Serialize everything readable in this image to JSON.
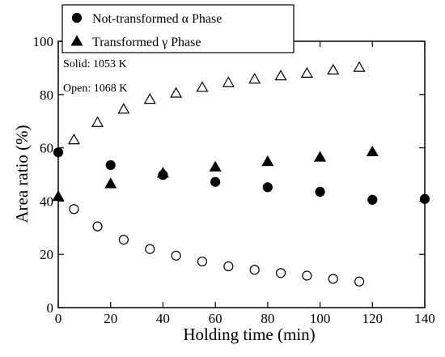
{
  "chart_data": {
    "type": "scatter",
    "title": "",
    "xlabel": "Holding time (min)",
    "ylabel": "Area ratio (%)",
    "xlim": [
      0,
      140
    ],
    "ylim": [
      0,
      100
    ],
    "x_ticks": [
      0,
      20,
      40,
      60,
      80,
      100,
      120,
      140
    ],
    "y_ticks": [
      0,
      20,
      40,
      60,
      80,
      100
    ],
    "x_tick_labels": [
      "0",
      "20",
      "40",
      "60",
      "80",
      "100",
      "120",
      "140"
    ],
    "y_tick_labels": [
      "0",
      "20",
      "40",
      "60",
      "80",
      "100"
    ],
    "grid": false,
    "legend": {
      "placement": "top-left",
      "entries": [
        {
          "label": "Not-transformed α Phase",
          "marker": "circle-filled"
        },
        {
          "label": "Transformed γ Phase",
          "marker": "triangle-filled"
        }
      ]
    },
    "annotations": [
      "Solid: 1053 K",
      "Open: 1068 K"
    ],
    "series": [
      {
        "legend_index": 0,
        "marker": "circle-filled",
        "x": [
          0,
          20,
          40,
          60,
          80,
          100,
          120,
          140
        ],
        "y": [
          58.3,
          53.5,
          49.8,
          47.2,
          45.2,
          43.5,
          40.5,
          40.8
        ]
      },
      {
        "legend_index": 1,
        "marker": "triangle-filled",
        "x": [
          0,
          20,
          40,
          60,
          80,
          100,
          120
        ],
        "y": [
          41.7,
          46.5,
          50.5,
          52.8,
          54.8,
          56.5,
          58.5
        ]
      },
      {
        "legend_index": null,
        "marker": "circle-open",
        "x": [
          6,
          15,
          25,
          35,
          45,
          55,
          65,
          75,
          85,
          95,
          105,
          115
        ],
        "y": [
          37,
          30.5,
          25.5,
          22,
          19.5,
          17.3,
          15.5,
          14.2,
          13,
          12,
          10.8,
          9.8
        ]
      },
      {
        "legend_index": null,
        "marker": "triangle-open",
        "x": [
          6,
          15,
          25,
          35,
          45,
          55,
          65,
          75,
          85,
          95,
          105,
          115
        ],
        "y": [
          63,
          69.5,
          74.5,
          78.2,
          80.5,
          82.7,
          84.5,
          85.8,
          87,
          88,
          89.2,
          90.2
        ]
      }
    ]
  }
}
